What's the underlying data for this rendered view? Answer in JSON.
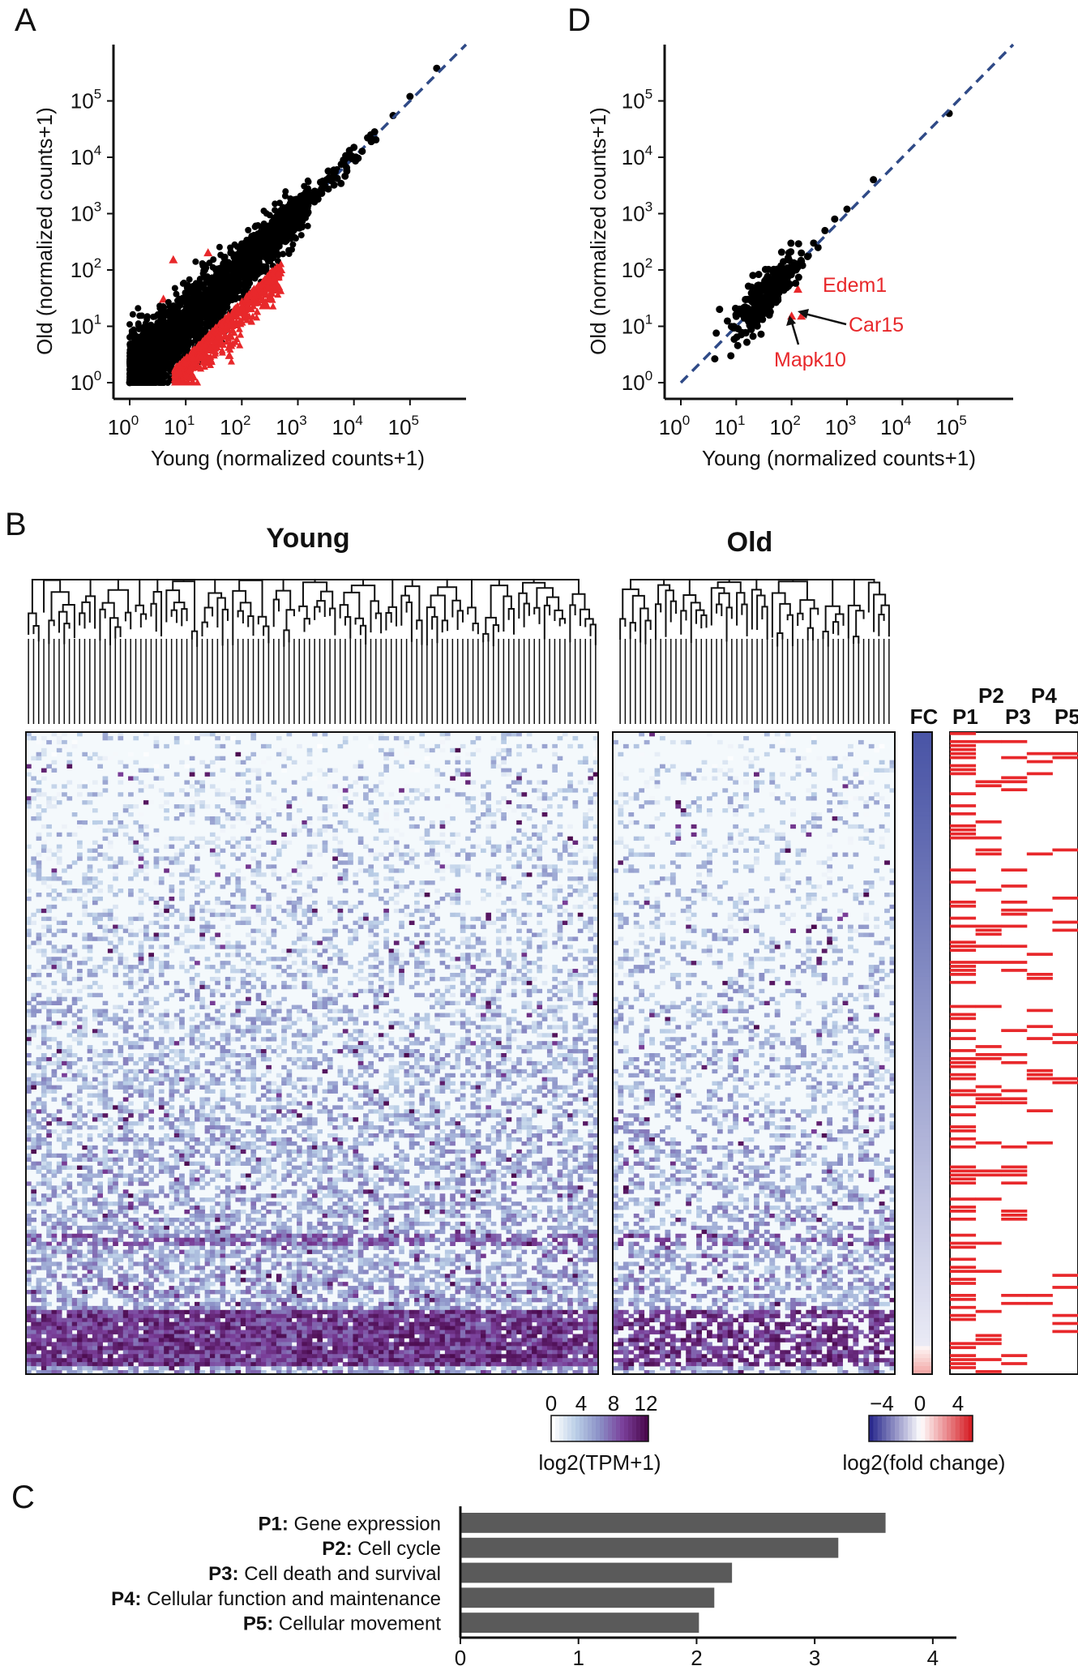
{
  "panels": {
    "A": {
      "letter": "A",
      "xlabel": "Young (normalized counts+1)",
      "ylabel": "Old (normalized counts+1)",
      "x_ticks": [
        "0",
        "1",
        "2",
        "3",
        "4",
        "5"
      ],
      "y_ticks": [
        "0",
        "1",
        "2",
        "3",
        "4",
        "5"
      ],
      "tick_base": "10"
    },
    "D": {
      "letter": "D",
      "xlabel": "Young (normalized counts+1)",
      "ylabel": "Old (normalized counts+1)",
      "x_ticks": [
        "0",
        "1",
        "2",
        "3",
        "4",
        "5"
      ],
      "y_ticks": [
        "0",
        "1",
        "2",
        "3",
        "4",
        "5"
      ],
      "tick_base": "10",
      "genes": [
        "Edem1",
        "Car15",
        "Mapk10"
      ]
    },
    "B": {
      "letter": "B",
      "young_title": "Young",
      "old_title": "Old",
      "fc_label": "FC",
      "pathway_labels": [
        "P1",
        "P2",
        "P3",
        "P4",
        "P5"
      ],
      "legend_tpm": {
        "ticks": [
          "0",
          "4",
          "8",
          "12"
        ],
        "label": "log2(TPM+1)"
      },
      "legend_fc": {
        "ticks": [
          "−4",
          "0",
          "4"
        ],
        "label": "log2(fold change)"
      }
    },
    "C": {
      "letter": "C",
      "x_ticks": [
        "0",
        "1",
        "2",
        "3",
        "4"
      ]
    }
  },
  "colors": {
    "points": "#000000",
    "highlight": "#e8282b",
    "diagonal": "#2f4a87",
    "bar": "#5a5a5a",
    "tpm_scale": [
      "#ffffff",
      "#b9cde6",
      "#8a8fc6",
      "#7a3f9a",
      "#4b0a4e"
    ],
    "fc_scale": [
      "#2b2a8e",
      "#ffffff",
      "#d62027"
    ]
  },
  "chart_data": [
    {
      "panel": "A",
      "type": "scatter",
      "xlabel": "Young (normalized counts+1)",
      "ylabel": "Old (normalized counts+1)",
      "x_scale": "log10",
      "y_scale": "log10",
      "xlim": [
        1,
        1000000
      ],
      "ylim": [
        1,
        1000000
      ],
      "reference_line": "y = x",
      "series": [
        {
          "marker": "circle",
          "color": "#000000",
          "points": [
            [
              1,
              1
            ],
            [
              2,
              3
            ],
            [
              3,
              2
            ],
            [
              5,
              8
            ],
            [
              8,
              5
            ],
            [
              10,
              12
            ],
            [
              15,
              20
            ],
            [
              20,
              15
            ],
            [
              30,
              40
            ],
            [
              50,
              60
            ],
            [
              80,
              100
            ],
            [
              100,
              120
            ],
            [
              150,
              180
            ],
            [
              200,
              260
            ],
            [
              300,
              350
            ],
            [
              500,
              600
            ],
            [
              800,
              1000
            ],
            [
              1000,
              1300
            ],
            [
              1500,
              1800
            ],
            [
              2000,
              2500
            ],
            [
              3000,
              3500
            ],
            [
              5000,
              6000
            ],
            [
              8000,
              9000
            ],
            [
              10000,
              15000
            ],
            [
              20000,
              25000
            ],
            [
              50000,
              55000
            ],
            [
              100000,
              120000
            ],
            [
              300000,
              380000
            ]
          ]
        },
        {
          "marker": "triangle",
          "color": "#e8282b",
          "points": [
            [
              10,
              2
            ],
            [
              15,
              3
            ],
            [
              20,
              4
            ],
            [
              30,
              6
            ],
            [
              40,
              8
            ],
            [
              50,
              10
            ],
            [
              80,
              15
            ],
            [
              100,
              20
            ],
            [
              150,
              30
            ],
            [
              200,
              35
            ],
            [
              300,
              60
            ],
            [
              400,
              80
            ],
            [
              500,
              100
            ],
            [
              8,
              1.5
            ],
            [
              12,
              1.5
            ],
            [
              25,
              200
            ],
            [
              6,
              150
            ],
            [
              4,
              30
            ],
            [
              60,
              3
            ]
          ]
        }
      ]
    },
    {
      "panel": "D",
      "type": "scatter",
      "xlabel": "Young (normalized counts+1)",
      "ylabel": "Old (normalized counts+1)",
      "x_scale": "log10",
      "y_scale": "log10",
      "xlim": [
        1,
        1000000
      ],
      "ylim": [
        1,
        1000000
      ],
      "reference_line": "y = x",
      "series": [
        {
          "marker": "circle",
          "color": "#000000",
          "points": [
            [
              10,
              15
            ],
            [
              15,
              30
            ],
            [
              20,
              20
            ],
            [
              25,
              40
            ],
            [
              30,
              25
            ],
            [
              40,
              60
            ],
            [
              50,
              45
            ],
            [
              60,
              80
            ],
            [
              70,
              90
            ],
            [
              80,
              70
            ],
            [
              90,
              150
            ],
            [
              100,
              120
            ],
            [
              120,
              100
            ],
            [
              150,
              200
            ],
            [
              200,
              180
            ],
            [
              250,
              300
            ],
            [
              300,
              250
            ],
            [
              400,
              500
            ],
            [
              600,
              800
            ],
            [
              1000,
              1200
            ],
            [
              3000,
              4000
            ],
            [
              70000,
              60000
            ],
            [
              8,
              3
            ],
            [
              5,
              20
            ],
            [
              20,
              80
            ]
          ]
        },
        {
          "marker": "triangle",
          "color": "#e8282b",
          "points": [
            [
              130,
              45
            ],
            [
              100,
              15
            ],
            [
              150,
              15
            ]
          ]
        }
      ],
      "annotations": [
        {
          "label": "Edem1",
          "x": 130,
          "y": 45
        },
        {
          "label": "Car15",
          "x": 150,
          "y": 15
        },
        {
          "label": "Mapk10",
          "x": 100,
          "y": 15
        }
      ]
    },
    {
      "panel": "C",
      "type": "bar",
      "orientation": "horizontal",
      "categories": [
        {
          "key": "P1:",
          "name": "Gene expression"
        },
        {
          "key": "P2:",
          "name": "Cell cycle"
        },
        {
          "key": "P3:",
          "name": "Cell death and survival"
        },
        {
          "key": "P4:",
          "name": "Cellular function and maintenance"
        },
        {
          "key": "P5:",
          "name": "Cellular movement"
        }
      ],
      "values": [
        3.6,
        3.2,
        2.3,
        2.15,
        2.02
      ],
      "xlim": [
        0,
        4.2
      ],
      "color": "#5a5a5a"
    }
  ]
}
